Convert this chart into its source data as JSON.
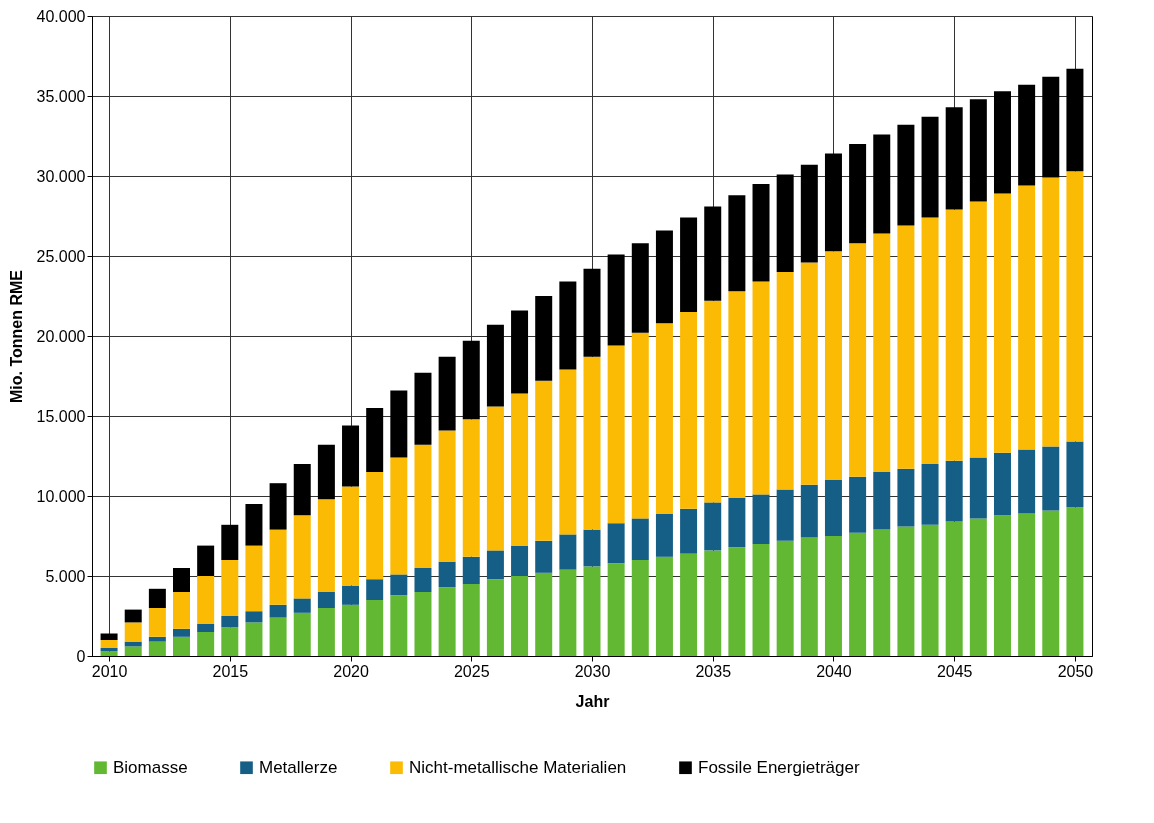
{
  "chart_data": {
    "type": "bar",
    "stacked": true,
    "xlabel": "Jahr",
    "ylabel": "Mio. Tonnen RME",
    "x": [
      2010,
      2011,
      2012,
      2013,
      2014,
      2015,
      2016,
      2017,
      2018,
      2019,
      2020,
      2021,
      2022,
      2023,
      2024,
      2025,
      2026,
      2027,
      2028,
      2029,
      2030,
      2031,
      2032,
      2033,
      2034,
      2035,
      2036,
      2037,
      2038,
      2039,
      2040,
      2041,
      2042,
      2043,
      2044,
      2045,
      2046,
      2047,
      2048,
      2049,
      2050
    ],
    "series": [
      {
        "name": "Biomasse",
        "color": "#62b832",
        "values": [
          300,
          600,
          900,
          1200,
          1500,
          1800,
          2100,
          2400,
          2700,
          3000,
          3200,
          3500,
          3800,
          4000,
          4300,
          4500,
          4800,
          5000,
          5200,
          5400,
          5600,
          5800,
          6000,
          6200,
          6400,
          6600,
          6800,
          7000,
          7200,
          7400,
          7500,
          7700,
          7900,
          8100,
          8200,
          8400,
          8600,
          8800,
          8900,
          9100,
          9300
        ]
      },
      {
        "name": "Metallerze",
        "color": "#155f87",
        "values": [
          200,
          300,
          300,
          500,
          500,
          700,
          700,
          800,
          900,
          1000,
          1200,
          1300,
          1300,
          1500,
          1600,
          1700,
          1800,
          1900,
          2000,
          2200,
          2300,
          2500,
          2600,
          2700,
          2800,
          3000,
          3100,
          3100,
          3200,
          3300,
          3500,
          3500,
          3600,
          3600,
          3800,
          3800,
          3800,
          3900,
          4000,
          4000,
          4100
        ]
      },
      {
        "name": "Nicht-metallische Materialien",
        "color": "#fbbb04",
        "values": [
          500,
          1200,
          1800,
          2300,
          3000,
          3500,
          4100,
          4700,
          5200,
          5800,
          6200,
          6700,
          7300,
          7700,
          8200,
          8600,
          9000,
          9500,
          10000,
          10300,
          10800,
          11100,
          11600,
          11900,
          12300,
          12600,
          12900,
          13300,
          13600,
          13900,
          14300,
          14600,
          14900,
          15200,
          15400,
          15700,
          16000,
          16200,
          16500,
          16800,
          16900
        ]
      },
      {
        "name": "Fossile Energieträger",
        "color": "#000000",
        "values": [
          400,
          800,
          1200,
          1500,
          1900,
          2200,
          2600,
          2900,
          3200,
          3400,
          3800,
          4000,
          4200,
          4500,
          4600,
          4900,
          5100,
          5200,
          5300,
          5500,
          5500,
          5700,
          5600,
          5800,
          5900,
          5900,
          6000,
          6100,
          6100,
          6100,
          6100,
          6200,
          6200,
          6300,
          6300,
          6400,
          6400,
          6400,
          6300,
          6300,
          6400
        ]
      }
    ],
    "xlim": [
      2009.5,
      2050.5
    ],
    "xticks": [
      2010,
      2015,
      2020,
      2025,
      2030,
      2035,
      2040,
      2045,
      2050
    ],
    "ylim": [
      0,
      40000
    ],
    "yticks": [
      0,
      {
        "value": 5000,
        "label": "5.000"
      },
      {
        "value": 10000,
        "label": "10.000"
      },
      {
        "value": 15000,
        "label": "15.000"
      },
      {
        "value": 20000,
        "label": "20.000"
      },
      {
        "value": 25000,
        "label": "25.000"
      },
      {
        "value": 30000,
        "label": "30.000"
      },
      {
        "value": 35000,
        "label": "35.000"
      },
      {
        "value": 40000,
        "label": "40.000"
      }
    ],
    "grid": true,
    "legend": "bottom"
  }
}
